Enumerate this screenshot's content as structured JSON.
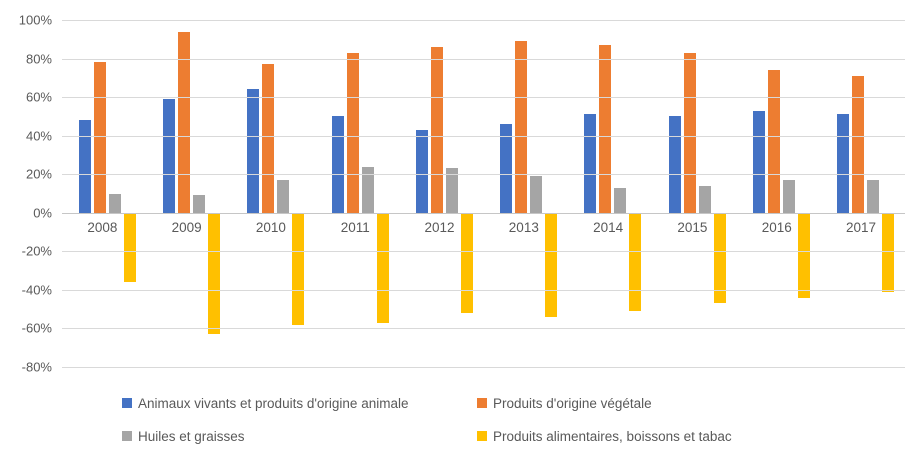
{
  "chart_data": {
    "type": "bar",
    "title": "",
    "categories": [
      "2008",
      "2009",
      "2010",
      "2011",
      "2012",
      "2013",
      "2014",
      "2015",
      "2016",
      "2017"
    ],
    "series": [
      {
        "name": "Animaux vivants et produits d'origine animale",
        "color": "#4472C4",
        "values": [
          48,
          59,
          64,
          50,
          43,
          46,
          51,
          50,
          53,
          51
        ]
      },
      {
        "name": "Produits d'origine végétale",
        "color": "#ED7D31",
        "values": [
          78,
          94,
          77,
          83,
          86,
          89,
          87,
          83,
          74,
          71
        ]
      },
      {
        "name": "Huiles et graisses",
        "color": "#A5A5A5",
        "values": [
          10,
          9,
          17,
          24,
          23,
          19,
          13,
          14,
          17,
          17
        ]
      },
      {
        "name": "Produits alimentaires, boissons et tabac",
        "color": "#FFC000",
        "values": [
          -36,
          -63,
          -58,
          -57,
          -52,
          -54,
          -51,
          -47,
          -44,
          -41
        ]
      }
    ],
    "ylim": [
      -80,
      100
    ],
    "ytick_step": 20,
    "y_ticks": [
      "100%",
      "80%",
      "60%",
      "40%",
      "20%",
      "0%",
      "-20%",
      "-40%",
      "-60%",
      "-80%"
    ],
    "unit": "percent",
    "grid": true,
    "legend_position": "bottom",
    "gridline_color": "#d9d9d9",
    "text_color": "#595959"
  }
}
